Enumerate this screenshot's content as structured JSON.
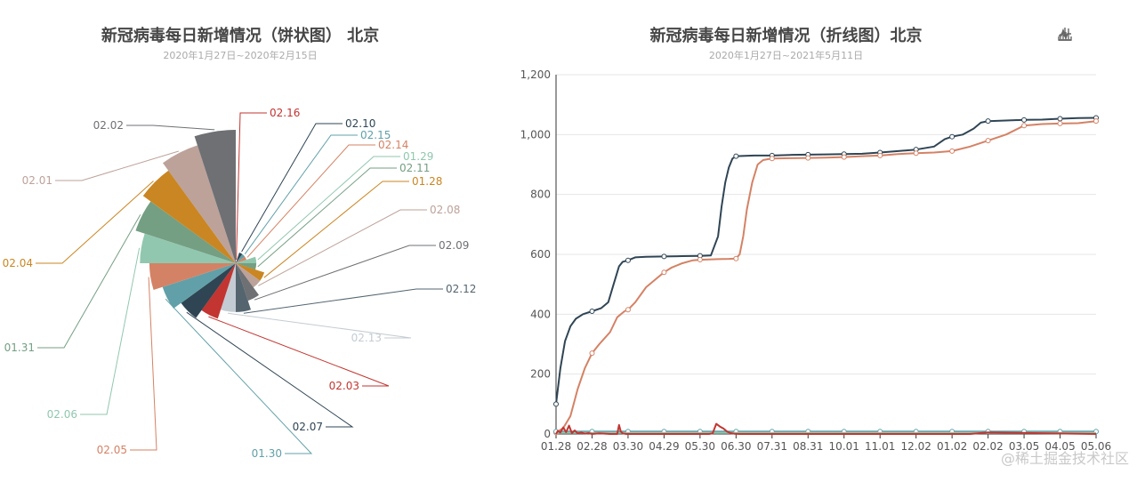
{
  "chart_data": [
    {
      "type": "pie",
      "variant": "rose-area",
      "title": "新冠病毒每日新增情况（饼状图） 北京",
      "subtitle": "2020年1月27日~2020年2月15日",
      "slices": [
        {
          "label": "02.16",
          "value": 0,
          "color": "#c23531"
        },
        {
          "label": "02.10",
          "value": 1,
          "color": "#2f4554"
        },
        {
          "label": "02.15",
          "value": 1,
          "color": "#61a0a8"
        },
        {
          "label": "02.14",
          "value": 1,
          "color": "#d48265"
        },
        {
          "label": "01.29",
          "value": 2,
          "color": "#91c7ae"
        },
        {
          "label": "02.11",
          "value": 2,
          "color": "#749f83"
        },
        {
          "label": "01.28",
          "value": 3,
          "color": "#ca8622"
        },
        {
          "label": "02.08",
          "value": 3,
          "color": "#bda29a"
        },
        {
          "label": "02.09",
          "value": 4,
          "color": "#6e7074"
        },
        {
          "label": "02.12",
          "value": 5,
          "color": "#546570"
        },
        {
          "label": "02.13",
          "value": 5,
          "color": "#c4ccd3"
        },
        {
          "label": "02.03",
          "value": 6,
          "color": "#c23531"
        },
        {
          "label": "02.07",
          "value": 7,
          "color": "#2f4554"
        },
        {
          "label": "01.30",
          "value": 8,
          "color": "#61a0a8"
        },
        {
          "label": "02.05",
          "value": 9,
          "color": "#d48265"
        },
        {
          "label": "02.06",
          "value": 10,
          "color": "#91c7ae"
        },
        {
          "label": "01.31",
          "value": 11,
          "color": "#749f83"
        },
        {
          "label": "02.04",
          "value": 12,
          "color": "#ca8622"
        },
        {
          "label": "02.01",
          "value": 13,
          "color": "#bda29a"
        },
        {
          "label": "02.02",
          "value": 14,
          "color": "#6e7074"
        }
      ]
    },
    {
      "type": "line",
      "title": "新冠病毒每日新增情况（折线图）北京",
      "subtitle": "2020年1月27日~2021年5月11日",
      "ylim": [
        0,
        1200
      ],
      "yticks": [
        0,
        200,
        400,
        600,
        800,
        1000,
        1200
      ],
      "ytick_labels": [
        "0",
        "200",
        "400",
        "600",
        "800",
        "1,000",
        "1,200"
      ],
      "xlim": [
        0,
        15
      ],
      "xtick_labels": [
        "01.28",
        "02.28",
        "03.30",
        "04.29",
        "05.30",
        "06.30",
        "07.31",
        "08.31",
        "10.01",
        "11.01",
        "12.02",
        "01.02",
        "02.02",
        "03.05",
        "04.05",
        "05.06"
      ],
      "series": [
        {
          "color": "#2f4554",
          "x": [
            0,
            0.12,
            0.25,
            0.4,
            0.55,
            0.75,
            1.0,
            1.25,
            1.45,
            1.6,
            1.75,
            1.85,
            2.0,
            2.2,
            2.5,
            3.0,
            3.5,
            4.0,
            4.3,
            4.5,
            4.6,
            4.7,
            4.8,
            4.9,
            5.0,
            5.5,
            6.0,
            6.5,
            7.0,
            7.5,
            8.0,
            8.5,
            9.0,
            9.5,
            10.0,
            10.5,
            10.8,
            11.0,
            11.3,
            11.6,
            11.8,
            12.0,
            12.5,
            13.0,
            13.5,
            14.0,
            14.5,
            15.0
          ],
          "y": [
            100,
            220,
            310,
            360,
            385,
            400,
            410,
            420,
            440,
            500,
            560,
            575,
            580,
            590,
            592,
            593,
            594,
            595,
            596,
            660,
            760,
            840,
            890,
            920,
            928,
            930,
            930,
            932,
            933,
            934,
            935,
            936,
            940,
            945,
            950,
            960,
            985,
            993,
            1000,
            1020,
            1040,
            1045,
            1047,
            1049,
            1050,
            1053,
            1055,
            1056
          ],
          "markers": [
            0,
            1,
            2,
            3,
            4,
            5,
            6,
            7,
            8,
            9,
            10,
            11,
            12,
            13,
            14,
            15
          ]
        },
        {
          "color": "#d48265",
          "x": [
            0,
            0.2,
            0.4,
            0.6,
            0.8,
            1.0,
            1.2,
            1.5,
            1.7,
            1.9,
            2.0,
            2.2,
            2.5,
            2.8,
            3.0,
            3.2,
            3.5,
            3.8,
            4.0,
            4.5,
            4.8,
            5.0,
            5.1,
            5.2,
            5.3,
            5.45,
            5.6,
            5.75,
            5.9,
            6.0,
            6.5,
            7.0,
            7.5,
            8.0,
            8.5,
            9.0,
            9.5,
            10.0,
            10.5,
            11.0,
            11.5,
            12.0,
            12.5,
            13.0,
            13.5,
            14.0,
            14.5,
            15.0
          ],
          "y": [
            5,
            20,
            60,
            150,
            220,
            270,
            300,
            340,
            390,
            410,
            415,
            440,
            490,
            520,
            540,
            555,
            570,
            580,
            582,
            584,
            585,
            586,
            600,
            660,
            750,
            840,
            900,
            915,
            918,
            920,
            921,
            922,
            923,
            925,
            928,
            930,
            935,
            938,
            940,
            945,
            960,
            980,
            1000,
            1030,
            1035,
            1037,
            1038,
            1045
          ],
          "markers": [
            0,
            1,
            2,
            3,
            4,
            5,
            6,
            7,
            8,
            9,
            10,
            11,
            12,
            13,
            14,
            15
          ]
        },
        {
          "color": "#61a0a8",
          "x": [
            0,
            15
          ],
          "y": [
            8,
            8
          ],
          "markers": [
            0,
            1,
            2,
            3,
            4,
            5,
            6,
            7,
            8,
            9,
            10,
            11,
            12,
            13,
            14,
            15
          ]
        },
        {
          "color": "#91c7ae",
          "x": [
            0,
            15
          ],
          "y": [
            4,
            4
          ],
          "markers": []
        },
        {
          "color": "#c23531",
          "x": [
            0,
            0.05,
            0.12,
            0.2,
            0.28,
            0.36,
            0.44,
            0.52,
            0.6,
            0.7,
            0.8,
            0.9,
            1.0,
            1.2,
            1.5,
            1.7,
            1.75,
            1.8,
            1.85,
            1.95,
            2.5,
            4.0,
            4.25,
            4.35,
            4.45,
            4.55,
            4.65,
            4.75,
            4.85,
            4.95,
            5.1,
            6.0,
            9.0,
            11.5,
            12.0,
            15.0
          ],
          "y": [
            0,
            10,
            5,
            22,
            6,
            28,
            3,
            12,
            2,
            5,
            1,
            3,
            0,
            2,
            0,
            0,
            30,
            8,
            2,
            0,
            0,
            0,
            0,
            2,
            34,
            25,
            18,
            8,
            3,
            1,
            0,
            0,
            0,
            0,
            5,
            0
          ],
          "markers": []
        }
      ]
    }
  ],
  "toolbox": {
    "icons": [
      "bar-chart-icon",
      "line-chart-icon",
      "download-icon"
    ]
  },
  "watermark": "@稀土掘金技术社区"
}
